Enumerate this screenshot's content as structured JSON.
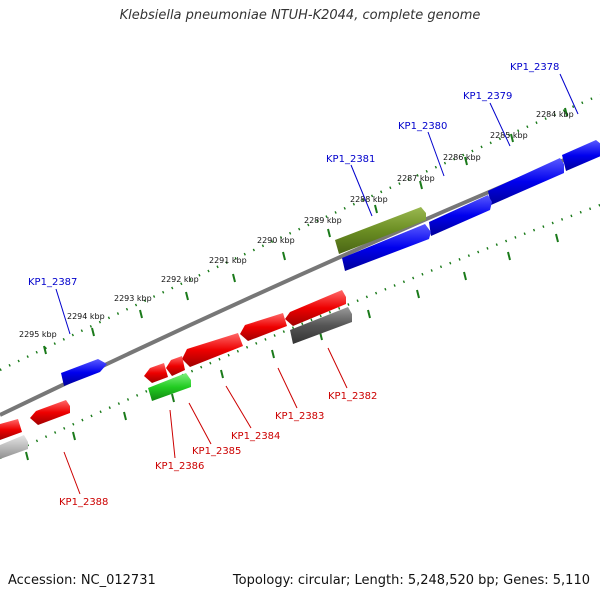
{
  "header": {
    "title": "Klebsiella pneumoniae NTUH-K2044, complete genome"
  },
  "footer": {
    "accession": "Accession: NC_012731",
    "info": "Topology: circular; Length: 5,248,520 bp; Genes: 5,110"
  },
  "colors": {
    "forward_label": "#0000cc",
    "reverse_label": "#cc0000",
    "tick": "#1a7a1a",
    "backbone": "#777777",
    "blue_gene": "#0000ee",
    "red_gene": "#ee0000",
    "olive_gene": "#6b8e23",
    "green_gene": "#22cc22",
    "dark_gray_gene": "#555555",
    "light_gray_gene": "#bbbbbb"
  },
  "scale_labels": [
    "2284 kbp",
    "2285 kbp",
    "2286 kbp",
    "2287 kbp",
    "2288 kbp",
    "2289 kbp",
    "2290 kbp",
    "2291 kbp",
    "2292 kbp",
    "2293 kbp",
    "2294 kbp",
    "2295 kbp"
  ],
  "forward_genes": [
    {
      "label": "KP1_2378"
    },
    {
      "label": "KP1_2379"
    },
    {
      "label": "KP1_2380"
    },
    {
      "label": "KP1_2381"
    },
    {
      "label": "KP1_2387"
    }
  ],
  "reverse_genes": [
    {
      "label": "KP1_2382"
    },
    {
      "label": "KP1_2383"
    },
    {
      "label": "KP1_2384"
    },
    {
      "label": "KP1_2385"
    },
    {
      "label": "KP1_2386"
    },
    {
      "label": "KP1_2388"
    }
  ]
}
